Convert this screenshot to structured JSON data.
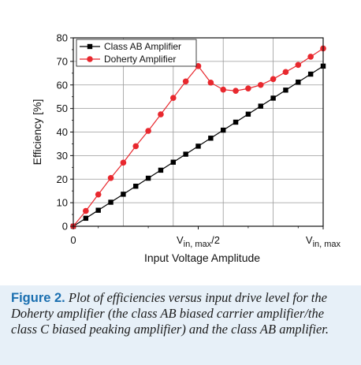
{
  "chart_data": {
    "type": "line",
    "ylabel": "Efficiency [%]",
    "xlabel": "Input Voltage Amplitude",
    "ylim": [
      0,
      80
    ],
    "yticks": [
      0,
      10,
      20,
      30,
      40,
      50,
      60,
      70,
      80
    ],
    "xlim": [
      0,
      1
    ],
    "xtick_labels": [
      {
        "pos": 0,
        "main": "0",
        "sub": "",
        "tail": ""
      },
      {
        "pos": 0.5,
        "main": "V",
        "sub": "in, max",
        "tail": "/2"
      },
      {
        "pos": 1,
        "main": "V",
        "sub": "in, max",
        "tail": ""
      }
    ],
    "grid": true,
    "legend_placement": "top-left",
    "x": [
      0,
      0.05,
      0.1,
      0.15,
      0.2,
      0.25,
      0.3,
      0.35,
      0.4,
      0.45,
      0.5,
      0.55,
      0.6,
      0.65,
      0.7,
      0.75,
      0.8,
      0.85,
      0.9,
      0.95,
      1.0
    ],
    "series": [
      {
        "name": "Class AB Amplifier",
        "color": "#000000",
        "marker": "square",
        "values": [
          0,
          3.4,
          6.8,
          10.2,
          13.6,
          17.0,
          20.4,
          23.8,
          27.2,
          30.6,
          34.0,
          37.4,
          40.8,
          44.2,
          47.6,
          51.0,
          54.4,
          57.8,
          61.2,
          64.6,
          68.0
        ]
      },
      {
        "name": "Doherty Amplifier",
        "color": "#e8282e",
        "marker": "circle",
        "values": [
          0,
          6.5,
          13.5,
          20.5,
          27.0,
          34.0,
          40.5,
          47.5,
          54.5,
          61.5,
          68.0,
          61.0,
          58.0,
          57.5,
          58.5,
          60.0,
          62.5,
          65.5,
          68.5,
          72.0,
          75.5
        ]
      }
    ]
  },
  "caption": {
    "label": "Figure 2.",
    "text": "Plot of efficiencies versus input drive level for the Doherty amplifier (the class AB biased carrier amplifier/the class C biased peaking amplifier) and the class AB amplifier."
  }
}
